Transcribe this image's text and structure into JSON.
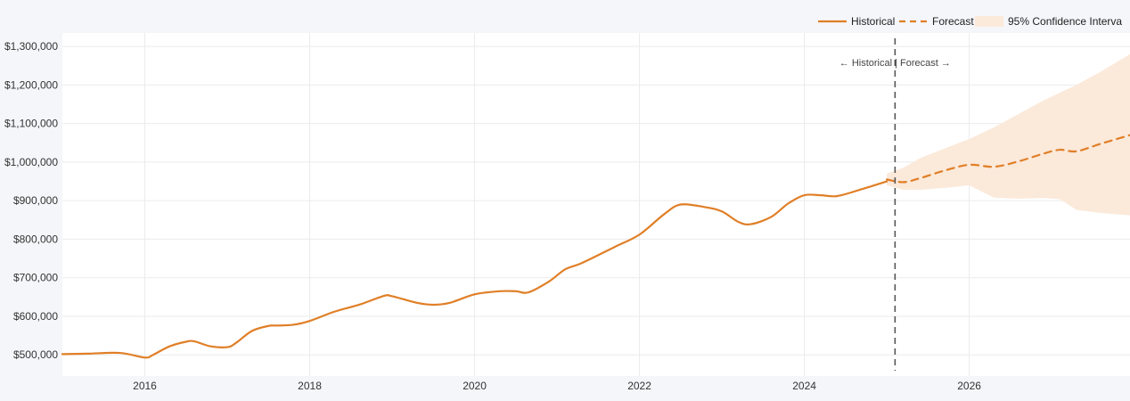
{
  "chart_data": {
    "type": "line",
    "title": "",
    "xlabel": "",
    "ylabel": "",
    "xlim": [
      2015.0,
      2027.95
    ],
    "ylim": [
      445000,
      1335000
    ],
    "grid": true,
    "legend_position": "top-right",
    "y_ticks": [
      500000,
      600000,
      700000,
      800000,
      900000,
      1000000,
      1100000,
      1200000,
      1300000
    ],
    "y_tick_labels": [
      "$500,000",
      "$600,000",
      "$700,000",
      "$800,000",
      "$900,000",
      "$1,000,000",
      "$1,100,000",
      "$1,200,000",
      "$1,300,000"
    ],
    "x_ticks": [
      2016,
      2018,
      2020,
      2022,
      2024,
      2026
    ],
    "x_tick_labels": [
      "2016",
      "2018",
      "2020",
      "2022",
      "2024",
      "2026"
    ],
    "split_x": 2025.1,
    "annotation": "← Historical | Forecast →",
    "colors": {
      "line": "#e07f27",
      "band": "#fbe9da",
      "split": "#555555",
      "plot_bg": "#ffffff",
      "grid": "#ebebeb"
    },
    "series": [
      {
        "name": "Historical",
        "style": "solid",
        "x": [
          2015.0,
          2015.3,
          2015.7,
          2016.0,
          2016.1,
          2016.3,
          2016.5,
          2016.6,
          2016.8,
          2017.0,
          2017.1,
          2017.3,
          2017.5,
          2017.6,
          2017.8,
          2018.0,
          2018.3,
          2018.6,
          2018.9,
          2019.0,
          2019.3,
          2019.5,
          2019.7,
          2020.0,
          2020.3,
          2020.5,
          2020.65,
          2020.9,
          2021.1,
          2021.3,
          2021.7,
          2022.0,
          2022.3,
          2022.5,
          2022.8,
          2023.0,
          2023.2,
          2023.35,
          2023.6,
          2023.8,
          2024.0,
          2024.2,
          2024.4,
          2024.7,
          2025.0
        ],
        "values": [
          502000,
          503000,
          505000,
          493000,
          500000,
          522000,
          534000,
          535000,
          522000,
          520000,
          530000,
          562000,
          575000,
          576000,
          578000,
          588000,
          612000,
          630000,
          653000,
          652000,
          635000,
          630000,
          635000,
          657000,
          665000,
          665000,
          662000,
          690000,
          722000,
          738000,
          780000,
          812000,
          865000,
          890000,
          883000,
          872000,
          845000,
          839000,
          858000,
          892000,
          914000,
          914000,
          912000,
          930000,
          950000
        ]
      },
      {
        "name": "Forecast",
        "style": "dashed",
        "x": [
          2025.0,
          2025.2,
          2025.4,
          2025.7,
          2026.0,
          2026.3,
          2026.6,
          2026.9,
          2027.1,
          2027.3,
          2027.6,
          2027.95
        ],
        "values": [
          955000,
          948000,
          958000,
          978000,
          993000,
          988000,
          1002000,
          1022000,
          1032000,
          1028000,
          1048000,
          1070000
        ]
      },
      {
        "name": "95% Confidence Interva",
        "style": "band",
        "x": [
          2025.0,
          2025.2,
          2025.4,
          2025.7,
          2026.0,
          2026.3,
          2026.6,
          2026.9,
          2027.1,
          2027.3,
          2027.6,
          2027.95
        ],
        "lower": [
          940000,
          928000,
          928000,
          933000,
          940000,
          908000,
          905000,
          907000,
          904000,
          876000,
          868000,
          862000
        ],
        "upper": [
          970000,
          985000,
          1010000,
          1035000,
          1060000,
          1090000,
          1125000,
          1160000,
          1180000,
          1200000,
          1235000,
          1280000
        ]
      }
    ]
  }
}
